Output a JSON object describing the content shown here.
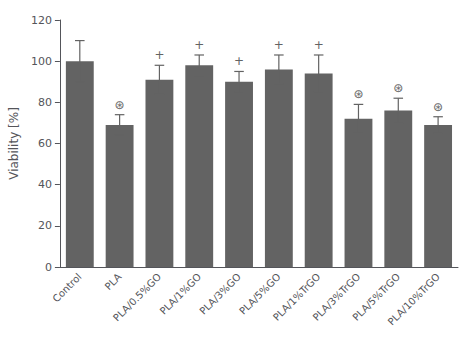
{
  "chart_data": {
    "type": "bar",
    "categories": [
      "Control",
      "PLA",
      "PLA/0.5%GO",
      "PLA/1%GO",
      "PLA/3%GO",
      "PLA/5%GO",
      "PLA/1%TrGO",
      "PLA/3%TrGO",
      "PLA/5%TrGO",
      "PLA/10%TrGO"
    ],
    "values": [
      100,
      69,
      91,
      98,
      90,
      96,
      94,
      72,
      76,
      69
    ],
    "errors": [
      10,
      5,
      7,
      5,
      5,
      7,
      9,
      7,
      6,
      4
    ],
    "color": "#636363",
    "ylabel": "Viability [%]",
    "ylim": [
      0,
      120
    ],
    "yticks": [
      0,
      20,
      40,
      60,
      80,
      100,
      120
    ],
    "grid": false,
    "annotations": [
      {
        "category": "PLA",
        "text": "⊛"
      },
      {
        "category": "PLA/0.5%GO",
        "text": "+"
      },
      {
        "category": "PLA/1%GO",
        "text": "+"
      },
      {
        "category": "PLA/3%GO",
        "text": "+"
      },
      {
        "category": "PLA/5%GO",
        "text": "+"
      },
      {
        "category": "PLA/1%TrGO",
        "text": "+"
      },
      {
        "category": "PLA/3%TrGO",
        "text": "⊛"
      },
      {
        "category": "PLA/5%TrGO",
        "text": "⊛"
      },
      {
        "category": "PLA/10%TrGO",
        "text": "⊛"
      }
    ]
  }
}
